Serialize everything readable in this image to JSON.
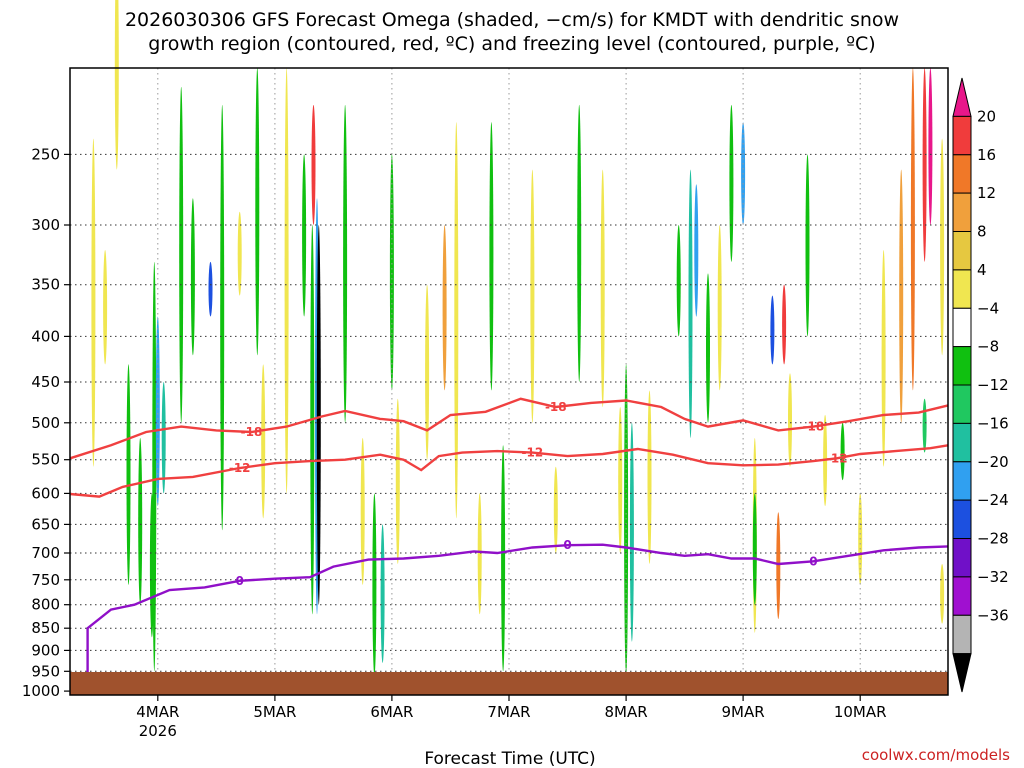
{
  "chart_data": {
    "type": "heatmap",
    "title_line1": "2026030306 GFS Forecast Omega (shaded, −cm/s) for KMDT with dendritic snow",
    "title_line2": "growth region (contoured, red, ºC) and freezing level (contoured, purple, ºC)",
    "xlabel": "Forecast Time (UTC)",
    "credit": "coolwx.com/models",
    "y_scale": "log-pressure, inverted",
    "ylim": [
      1010,
      200
    ],
    "x_ticks": [
      {
        "day": 4,
        "label": "4MAR",
        "sublabel": "2026"
      },
      {
        "day": 5,
        "label": "5MAR",
        "sublabel": ""
      },
      {
        "day": 6,
        "label": "6MAR",
        "sublabel": ""
      },
      {
        "day": 7,
        "label": "7MAR",
        "sublabel": ""
      },
      {
        "day": 8,
        "label": "8MAR",
        "sublabel": ""
      },
      {
        "day": 9,
        "label": "9MAR",
        "sublabel": ""
      },
      {
        "day": 10,
        "label": "10MAR",
        "sublabel": ""
      }
    ],
    "xlim_day": [
      3.25,
      10.75
    ],
    "y_ticks": [
      250,
      300,
      350,
      400,
      450,
      500,
      550,
      600,
      650,
      700,
      750,
      800,
      850,
      900,
      950,
      1000
    ],
    "grid": true,
    "colorbar": {
      "position": "right",
      "labels": [
        "20",
        "16",
        "12",
        "8",
        "4",
        "−4",
        "−8",
        "−12",
        "−16",
        "−20",
        "−24",
        "−28",
        "−32",
        "−36"
      ],
      "colors": [
        "#e8178a",
        "#f03c3c",
        "#f07828",
        "#f0a03c",
        "#e6c840",
        "#f0e650",
        "#ffffff",
        "#10c010",
        "#20c860",
        "#20c0a0",
        "#30a0f0",
        "#1c50e0",
        "#7010c8",
        "#a010d0",
        "#b4b4b4",
        "#000000"
      ]
    },
    "contours": [
      {
        "label": "-18",
        "color": "#f04040",
        "points": [
          [
            3.25,
            548
          ],
          [
            3.6,
            530
          ],
          [
            3.9,
            512
          ],
          [
            4.2,
            505
          ],
          [
            4.5,
            510
          ],
          [
            4.8,
            512
          ],
          [
            5.1,
            505
          ],
          [
            5.4,
            492
          ],
          [
            5.6,
            485
          ],
          [
            5.9,
            495
          ],
          [
            6.1,
            498
          ],
          [
            6.3,
            510
          ],
          [
            6.5,
            490
          ],
          [
            6.8,
            486
          ],
          [
            7.1,
            470
          ],
          [
            7.4,
            480
          ],
          [
            7.7,
            475
          ],
          [
            8.0,
            472
          ],
          [
            8.3,
            480
          ],
          [
            8.5,
            495
          ],
          [
            8.7,
            505
          ],
          [
            9.0,
            497
          ],
          [
            9.3,
            510
          ],
          [
            9.6,
            505
          ],
          [
            9.9,
            498
          ],
          [
            10.2,
            490
          ],
          [
            10.5,
            487
          ],
          [
            10.75,
            478
          ]
        ]
      },
      {
        "label": "-12",
        "color": "#f04040",
        "points": [
          [
            3.25,
            601
          ],
          [
            3.5,
            605
          ],
          [
            3.7,
            590
          ],
          [
            4.0,
            578
          ],
          [
            4.3,
            575
          ],
          [
            4.7,
            562
          ],
          [
            5.0,
            555
          ],
          [
            5.3,
            552
          ],
          [
            5.6,
            550
          ],
          [
            5.9,
            543
          ],
          [
            6.1,
            550
          ],
          [
            6.25,
            565
          ],
          [
            6.4,
            545
          ],
          [
            6.6,
            540
          ],
          [
            6.9,
            538
          ],
          [
            7.2,
            540
          ],
          [
            7.5,
            545
          ],
          [
            7.8,
            542
          ],
          [
            8.1,
            535
          ],
          [
            8.4,
            543
          ],
          [
            8.7,
            555
          ],
          [
            9.0,
            558
          ],
          [
            9.3,
            557
          ],
          [
            9.6,
            552
          ],
          [
            9.8,
            548
          ],
          [
            10.0,
            542
          ],
          [
            10.3,
            538
          ],
          [
            10.6,
            534
          ],
          [
            10.75,
            530
          ]
        ]
      },
      {
        "label": "0",
        "color": "#9010c8",
        "points": [
          [
            3.4,
            975
          ],
          [
            3.4,
            850
          ],
          [
            3.6,
            810
          ],
          [
            3.8,
            800
          ],
          [
            4.1,
            770
          ],
          [
            4.4,
            765
          ],
          [
            4.7,
            752
          ],
          [
            5.0,
            748
          ],
          [
            5.3,
            745
          ],
          [
            5.5,
            725
          ],
          [
            5.8,
            712
          ],
          [
            6.1,
            710
          ],
          [
            6.4,
            705
          ],
          [
            6.7,
            697
          ],
          [
            6.9,
            700
          ],
          [
            7.2,
            690
          ],
          [
            7.5,
            686
          ],
          [
            7.8,
            685
          ],
          [
            8.0,
            690
          ],
          [
            8.3,
            700
          ],
          [
            8.5,
            705
          ],
          [
            8.7,
            702
          ],
          [
            8.9,
            710
          ],
          [
            9.1,
            710
          ],
          [
            9.3,
            720
          ],
          [
            9.6,
            715
          ],
          [
            9.9,
            705
          ],
          [
            10.2,
            695
          ],
          [
            10.5,
            690
          ],
          [
            10.75,
            688
          ]
        ]
      }
    ]
  }
}
